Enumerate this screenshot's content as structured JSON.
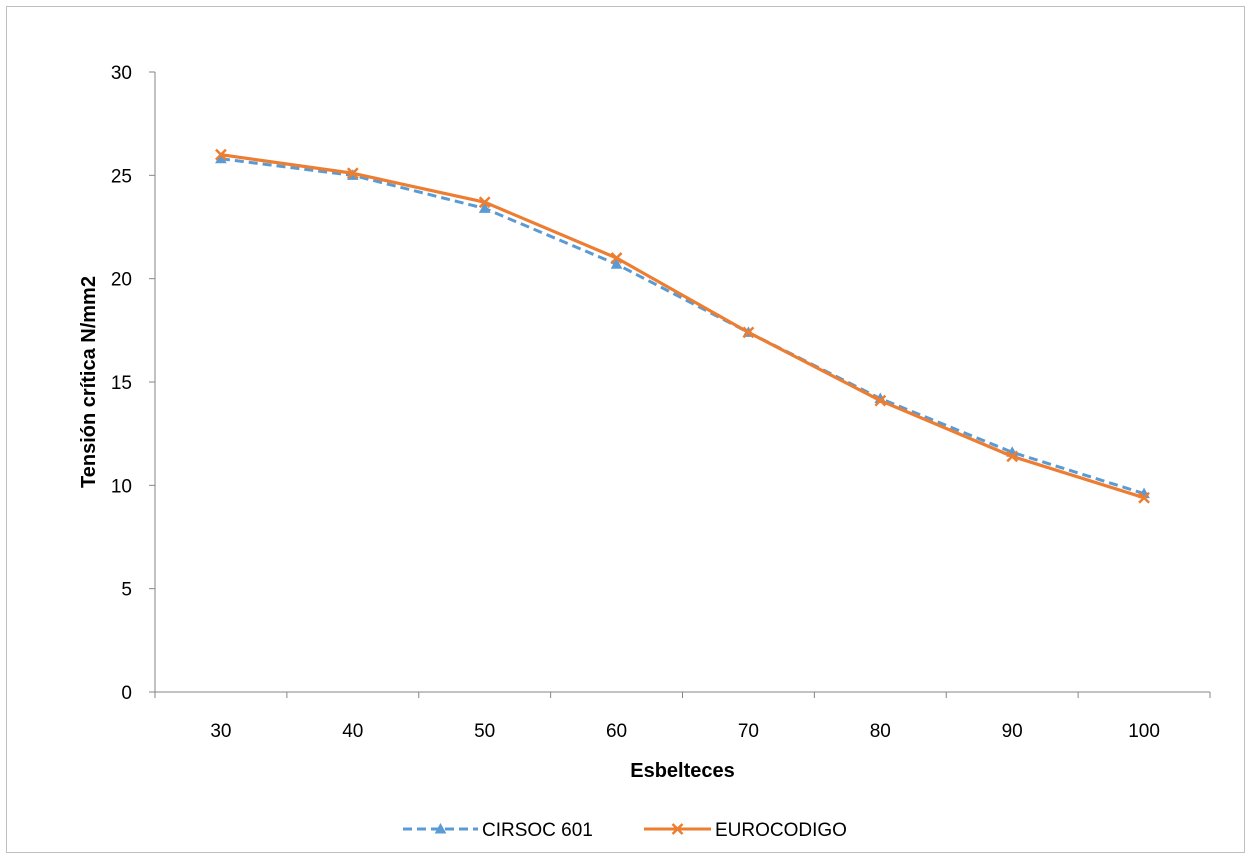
{
  "chart_data": {
    "type": "line",
    "title": "",
    "xlabel": "Esbelteces",
    "ylabel": "Tensión crítica N/mm2",
    "categories": [
      "30",
      "40",
      "50",
      "60",
      "70",
      "80",
      "90",
      "100"
    ],
    "ylim": [
      0,
      30
    ],
    "yticks": [
      "0",
      "5",
      "10",
      "15",
      "20",
      "25",
      "30"
    ],
    "grid": false,
    "legend_position": "bottom",
    "series": [
      {
        "name": "CIRSOC 601",
        "values": [
          25.8,
          25.0,
          23.4,
          20.7,
          17.4,
          14.2,
          11.6,
          9.6
        ],
        "color": "#5b9bd5",
        "line_style": "dashed",
        "marker": "triangle"
      },
      {
        "name": "EUROCODIGO",
        "values": [
          26.0,
          25.1,
          23.7,
          21.0,
          17.4,
          14.1,
          11.4,
          9.4
        ],
        "color": "#ed7d31",
        "line_style": "solid",
        "marker": "x"
      }
    ]
  }
}
